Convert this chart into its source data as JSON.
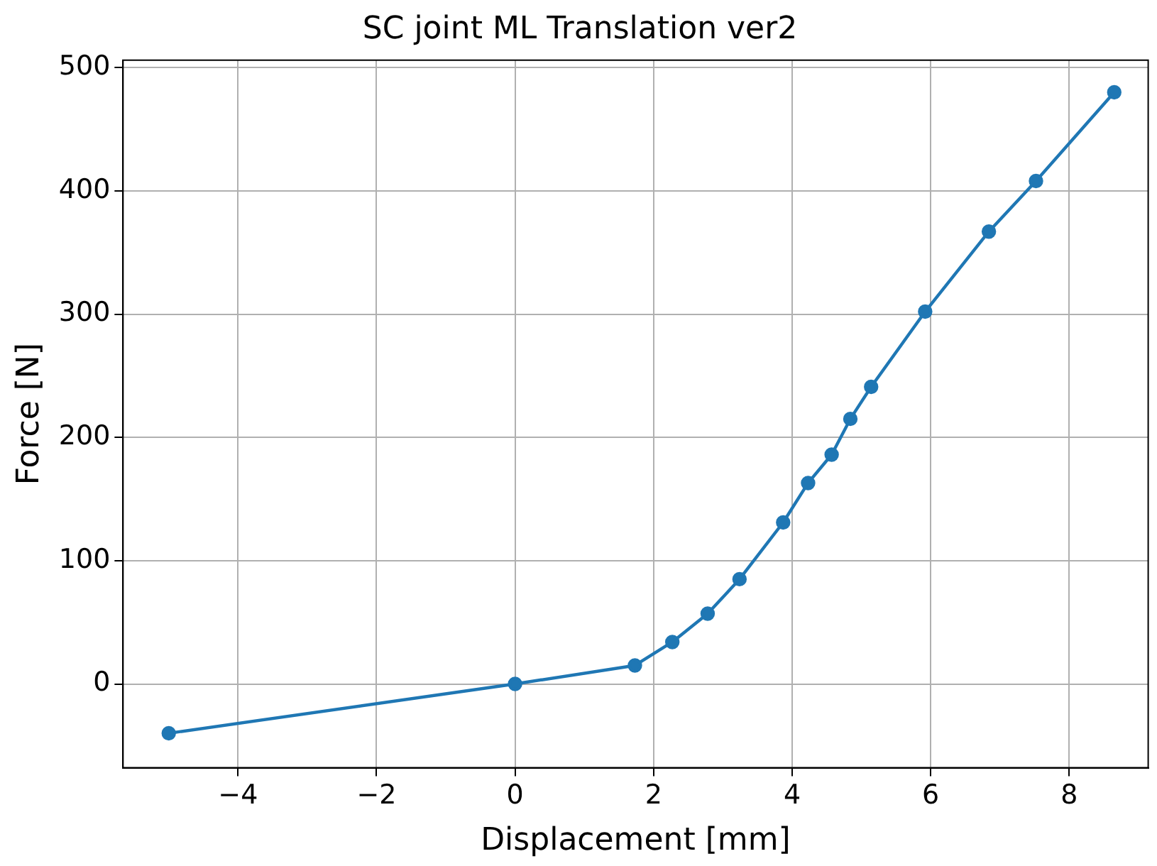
{
  "chart_data": {
    "type": "line",
    "title": "SC joint ML Translation ver2",
    "xlabel": "Displacement [mm]",
    "ylabel": "Force [N]",
    "x": [
      -5,
      0,
      1.73,
      2.27,
      2.78,
      3.24,
      3.87,
      4.23,
      4.57,
      4.84,
      5.14,
      5.92,
      6.84,
      7.52,
      8.65
    ],
    "series": [
      {
        "color": "#1f77b4",
        "values": [
          -40,
          0,
          15,
          34,
          57,
          85,
          131,
          163,
          186,
          215,
          241,
          302,
          367,
          408,
          480
        ]
      }
    ],
    "xlim": [
      -5.66,
      9.14
    ],
    "xticks": [
      {
        "value": -4,
        "label": "−4"
      },
      {
        "value": -2,
        "label": "−2"
      },
      0,
      2,
      4,
      6,
      8
    ],
    "ylim": [
      -68,
      506
    ],
    "yticks": [
      0,
      100,
      200,
      300,
      400,
      500
    ],
    "grid": true,
    "legend": false,
    "marker": "circle",
    "line_style": "solid"
  }
}
